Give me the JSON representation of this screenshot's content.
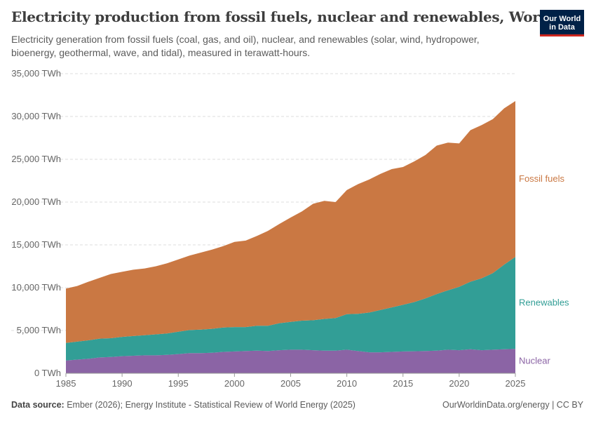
{
  "header": {
    "title": "Electricity production from fossil fuels, nuclear and renewables, World",
    "subtitle": "Electricity generation from fossil fuels (coal, gas, and oil), nuclear, and renewables (solar, wind, hydropower, bioenergy, geothermal, wave, and tidal), measured in terawatt-hours.",
    "logo_text": "Our World in Data"
  },
  "footer": {
    "source_label": "Data source:",
    "source_text": "Ember (2026); Energy Institute - Statistical Review of World Energy (2025)",
    "right_text": "OurWorldinData.org/energy | CC BY"
  },
  "chart_data": {
    "type": "area",
    "stacked": true,
    "title": "Electricity production from fossil fuels, nuclear and renewables, World",
    "xlabel": "",
    "ylabel": "",
    "unit": "TWh",
    "xlim": [
      1985,
      2025
    ],
    "ylim": [
      0,
      35000
    ],
    "grid": true,
    "legend_placement": "right (inline labels)",
    "x_ticks": [
      "1985",
      "1990",
      "1995",
      "2000",
      "2005",
      "2010",
      "2015",
      "2020",
      "2025"
    ],
    "y_ticks": [
      "0 TWh",
      "5,000 TWh",
      "10,000 TWh",
      "15,000 TWh",
      "20,000 TWh",
      "25,000 TWh",
      "30,000 TWh",
      "35,000 TWh"
    ],
    "x": [
      1985,
      1986,
      1987,
      1988,
      1989,
      1990,
      1991,
      1992,
      1993,
      1994,
      1995,
      1996,
      1997,
      1998,
      1999,
      2000,
      2001,
      2002,
      2003,
      2004,
      2005,
      2006,
      2007,
      2008,
      2009,
      2010,
      2011,
      2012,
      2013,
      2014,
      2015,
      2016,
      2017,
      2018,
      2019,
      2020,
      2021,
      2022,
      2023,
      2024,
      2025
    ],
    "series": [
      {
        "name": "Nuclear",
        "color": "#8b64a5",
        "values": [
          1500,
          1600,
          1700,
          1850,
          1900,
          2000,
          2050,
          2100,
          2100,
          2150,
          2250,
          2350,
          2350,
          2400,
          2500,
          2550,
          2600,
          2650,
          2600,
          2700,
          2750,
          2750,
          2700,
          2650,
          2650,
          2750,
          2600,
          2450,
          2450,
          2500,
          2550,
          2570,
          2600,
          2650,
          2750,
          2700,
          2800,
          2700,
          2750,
          2800,
          2850
        ]
      },
      {
        "name": "Renewables",
        "color": "#329e96",
        "values": [
          2050,
          2100,
          2150,
          2200,
          2200,
          2250,
          2300,
          2350,
          2450,
          2500,
          2600,
          2700,
          2750,
          2800,
          2850,
          2850,
          2800,
          2900,
          2950,
          3150,
          3250,
          3400,
          3500,
          3700,
          3800,
          4150,
          4350,
          4650,
          4950,
          5200,
          5450,
          5750,
          6150,
          6600,
          6950,
          7400,
          7900,
          8400,
          8950,
          9900,
          10750
        ]
      },
      {
        "name": "Fossil fuels",
        "color": "#ca7843",
        "values": [
          6350,
          6500,
          6850,
          7100,
          7500,
          7600,
          7750,
          7800,
          7950,
          8200,
          8450,
          8700,
          9000,
          9250,
          9500,
          9950,
          10100,
          10500,
          11100,
          11600,
          12200,
          12750,
          13600,
          13800,
          13550,
          14500,
          15150,
          15550,
          15900,
          16150,
          16100,
          16430,
          16750,
          17350,
          17250,
          16750,
          17700,
          17900,
          18000,
          18250,
          18200
        ]
      }
    ]
  }
}
